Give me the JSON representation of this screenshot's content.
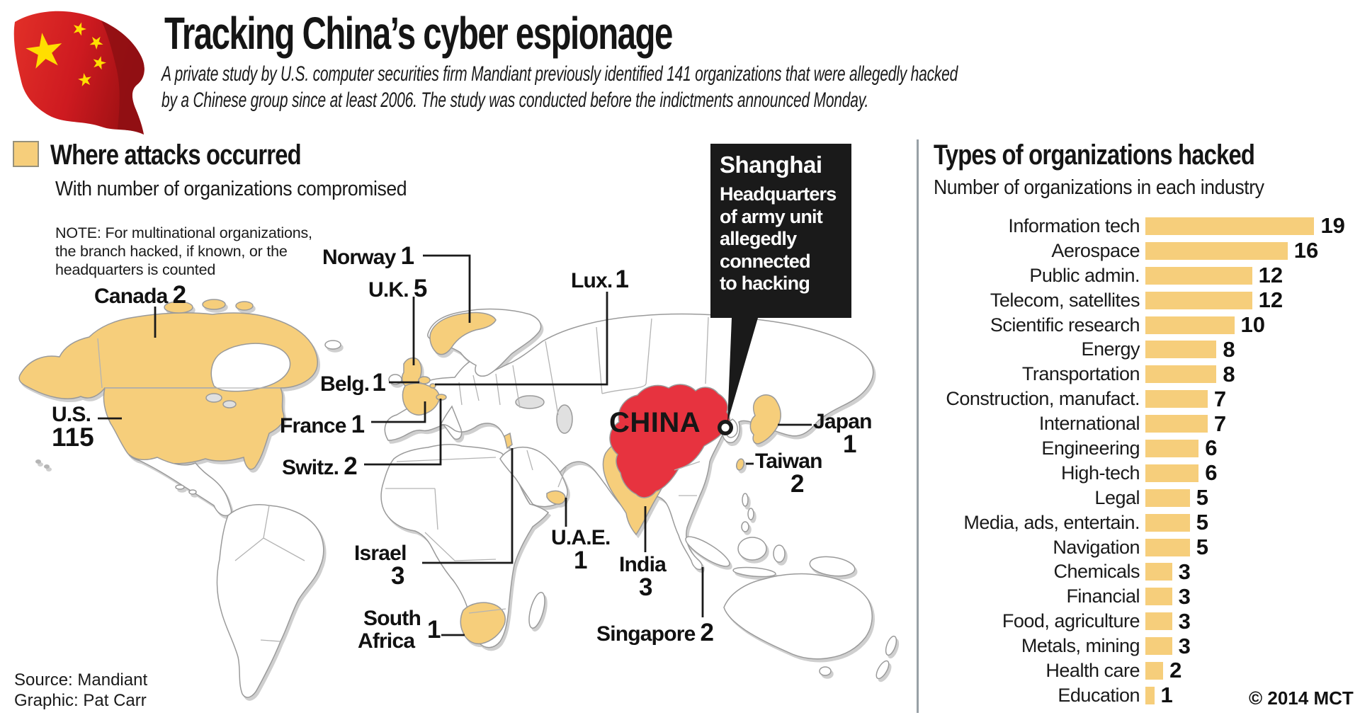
{
  "colors": {
    "highlight_yellow": "#F6CE7B",
    "china_red": "#E7333F",
    "callout_black": "#1A1A1A",
    "map_border_gray": "#9a9a9a"
  },
  "header": {
    "title": "Tracking China’s cyber espionage",
    "subtitle_line1": "A private study by U.S. computer securities firm Mandiant previously identified 141 organizations that were allegedly hacked",
    "subtitle_line2": "by a Chinese group since at least 2006. The study was conducted before the indictments announced Monday."
  },
  "map_section": {
    "heading": "Where attacks occurred",
    "subheading": "With number of organizations compromised",
    "note_line1": "NOTE: For multinational organizations,",
    "note_line2": "the branch hacked, if known, or the",
    "note_line3": "headquarters is counted",
    "china_label": "CHINA",
    "callout": {
      "title": "Shanghai",
      "line1": "Headquarters",
      "line2": "of army unit",
      "line3": "allegedly",
      "line4": "connected",
      "line5": "to hacking"
    },
    "labels": {
      "canada": {
        "name": "Canada",
        "value": "2"
      },
      "us": {
        "name": "U.S.",
        "value": "115"
      },
      "norway": {
        "name": "Norway",
        "value": "1"
      },
      "uk": {
        "name": "U.K.",
        "value": "5"
      },
      "belgium": {
        "name": "Belg.",
        "value": "1"
      },
      "luxembourg": {
        "name": "Lux.",
        "value": "1"
      },
      "france": {
        "name": "France",
        "value": "1"
      },
      "switzerland": {
        "name": "Switz.",
        "value": "2"
      },
      "israel": {
        "name": "Israel",
        "value": "3"
      },
      "south_africa": {
        "name_line1": "South",
        "name_line2": "Africa",
        "value": "1"
      },
      "uae": {
        "name": "U.A.E.",
        "value": "1"
      },
      "india": {
        "name": "India",
        "value": "3"
      },
      "singapore": {
        "name": "Singapore",
        "value": "2"
      },
      "japan": {
        "name": "Japan",
        "value": "1"
      },
      "taiwan": {
        "name": "Taiwan",
        "value": "2"
      }
    }
  },
  "chart_data": {
    "type": "bar",
    "orientation": "horizontal",
    "title": "Types of organizations hacked",
    "subtitle": "Number of organizations in each industry",
    "categories": [
      "Information tech",
      "Aerospace",
      "Public admin.",
      "Telecom, satellites",
      "Scientific research",
      "Energy",
      "Transportation",
      "Construction, manufact.",
      "International",
      "Engineering",
      "High-tech",
      "Legal",
      "Media, ads, entertain.",
      "Navigation",
      "Chemicals",
      "Financial",
      "Food, agriculture",
      "Metals, mining",
      "Health care",
      "Education"
    ],
    "values": [
      19,
      16,
      12,
      12,
      10,
      8,
      8,
      7,
      7,
      6,
      6,
      5,
      5,
      5,
      3,
      3,
      3,
      3,
      2,
      1
    ],
    "xlim": [
      0,
      19
    ],
    "bar_color": "#F6CE7B",
    "value_labels_shown": true,
    "grid": false
  },
  "footer": {
    "source": "Source: Mandiant",
    "credit": "Graphic: Pat Carr",
    "copyright": "© 2014 MCT"
  }
}
